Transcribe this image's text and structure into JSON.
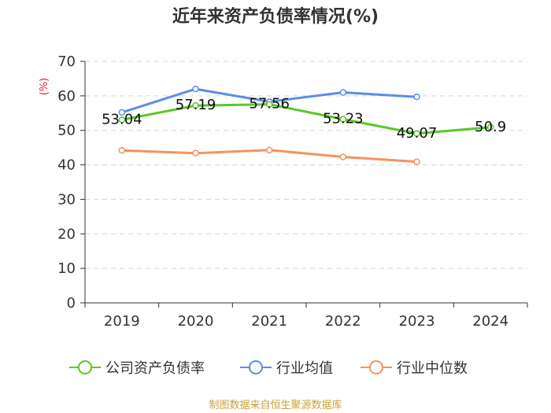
{
  "chart_data": {
    "type": "line",
    "title": "近年来资产负债率情况(%)",
    "ylabel": "(%)",
    "xlabel": "",
    "categories": [
      "2019",
      "2020",
      "2021",
      "2022",
      "2023",
      "2024"
    ],
    "ylim": [
      0,
      70
    ],
    "yticks": [
      0,
      10,
      20,
      30,
      40,
      50,
      60,
      70
    ],
    "grid": true,
    "legend_position": "bottom",
    "series": [
      {
        "name": "公司资产负债率",
        "color": "#5ac828",
        "values": [
          53.04,
          57.19,
          57.56,
          53.23,
          49.07,
          50.9
        ],
        "labels": [
          "53.04",
          "57.19",
          "57.56",
          "53.23",
          "49.07",
          "50.9"
        ]
      },
      {
        "name": "行业均值",
        "color": "#5b8ee6",
        "values": [
          55.2,
          62.0,
          58.3,
          61.0,
          59.7,
          null
        ]
      },
      {
        "name": "行业中位数",
        "color": "#f5935a",
        "values": [
          44.2,
          43.4,
          44.3,
          42.3,
          40.9,
          null
        ]
      }
    ],
    "source": "制图数据来自恒生聚源数据库"
  }
}
